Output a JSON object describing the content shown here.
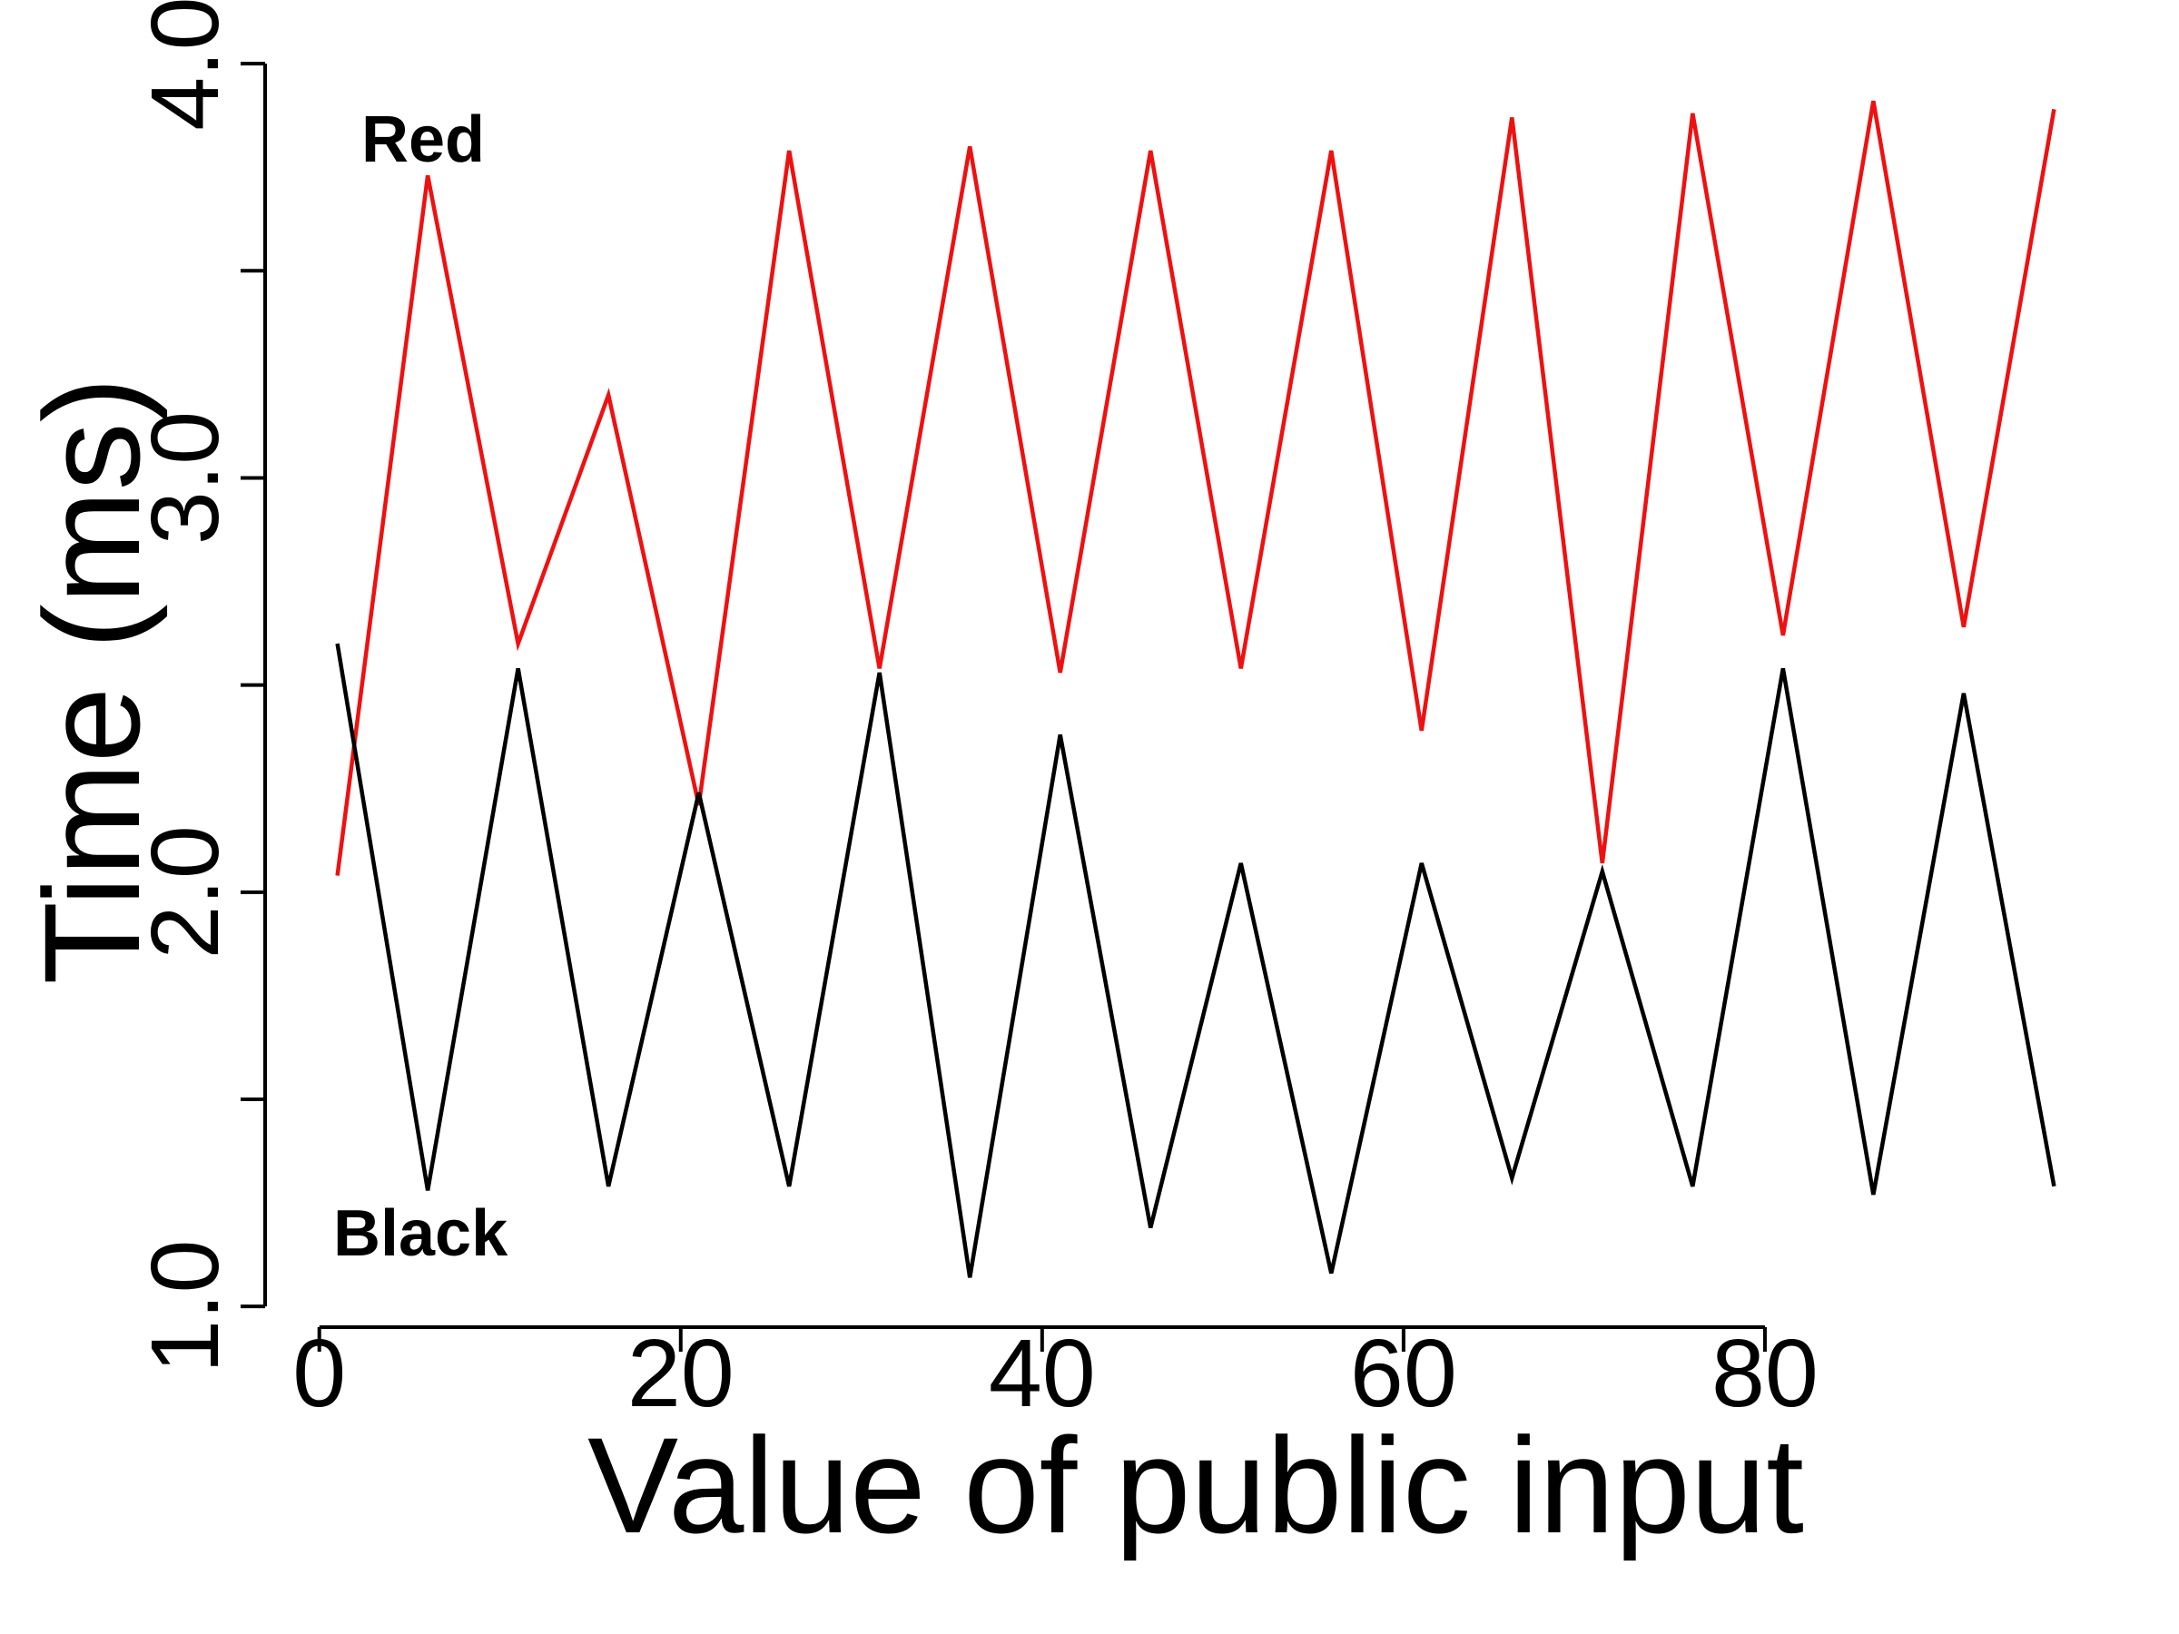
{
  "chart_data": {
    "type": "line",
    "x_label": "Value of public input",
    "y_label": "Time (ms)",
    "x": [
      1,
      6,
      11,
      16,
      21,
      26,
      31,
      36,
      41,
      46,
      51,
      56,
      61,
      66,
      71,
      76,
      81,
      86,
      91,
      96
    ],
    "series": [
      {
        "name": "Red",
        "color": "#ee1111",
        "label_color": "#f0401e",
        "values": [
          2.04,
          3.73,
          2.6,
          3.2,
          2.21,
          3.79,
          2.54,
          3.8,
          2.53,
          3.79,
          2.54,
          3.79,
          2.39,
          3.87,
          2.07,
          3.88,
          2.62,
          3.91,
          2.64,
          3.89
        ]
      },
      {
        "name": "Black",
        "color": "#000000",
        "label_color": "#000000",
        "values": [
          2.6,
          1.28,
          2.54,
          1.29,
          2.24,
          1.29,
          2.53,
          1.07,
          2.38,
          1.19,
          2.07,
          1.08,
          2.07,
          1.31,
          2.05,
          1.29,
          2.54,
          1.27,
          2.48,
          1.29
        ]
      }
    ],
    "xlim": [
      -3,
      100
    ],
    "ylim": [
      0.95,
      4.02
    ],
    "xticks": [
      0,
      20,
      40,
      60,
      80
    ],
    "yticks": [
      {
        "value": 1,
        "label": "1.0"
      },
      {
        "value": 1.5,
        "label": null
      },
      {
        "value": 2,
        "label": "2.0"
      },
      {
        "value": 2.5,
        "label": null
      },
      {
        "value": 3,
        "label": "3.0"
      },
      {
        "value": 3.5,
        "label": null
      },
      {
        "value": 4,
        "label": "4.0"
      }
    ],
    "grid": false
  }
}
